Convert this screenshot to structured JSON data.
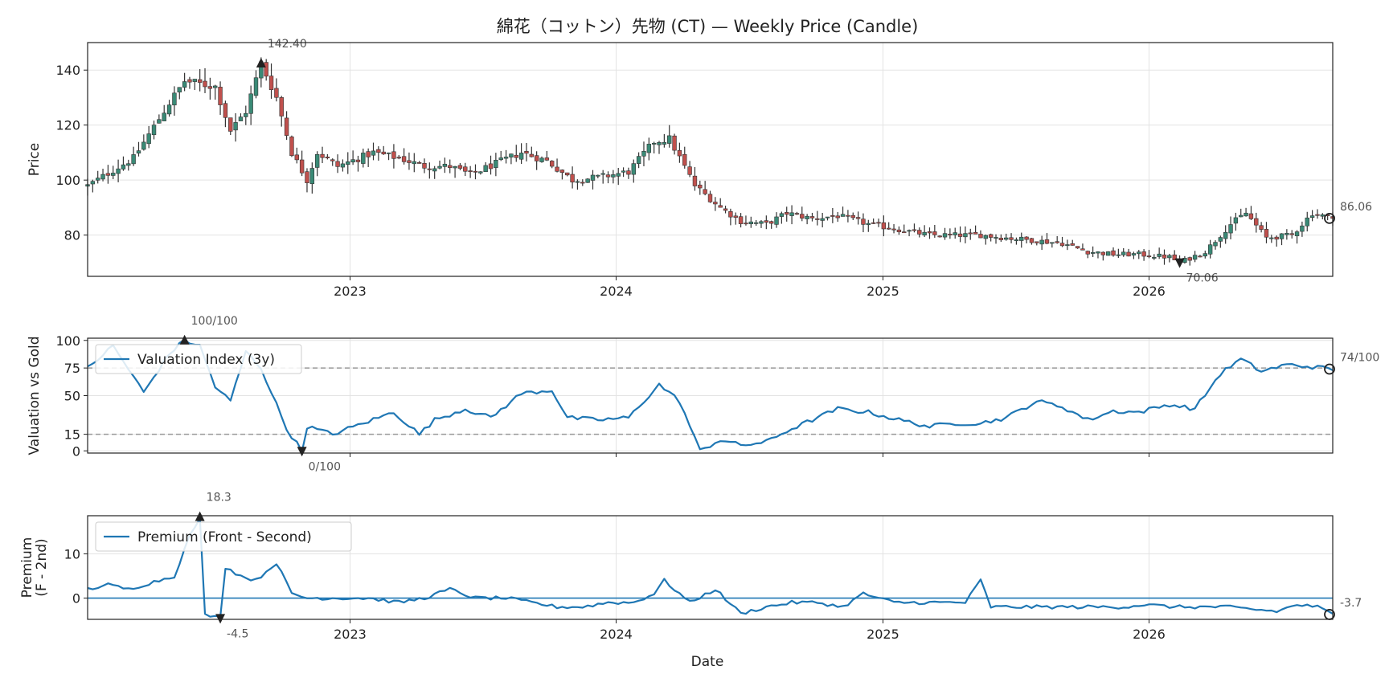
{
  "chart_data": {
    "type": "multi-panel",
    "title": "綿花（コットン）先物 (CT) — Weekly Price (Candle)",
    "x_axis": {
      "label": "Date",
      "tick_labels": [
        "2023",
        "2024",
        "2025",
        "2026"
      ],
      "range": [
        "2022-01-06",
        "2026-09-10"
      ]
    },
    "colors": {
      "up": "#3a8a76",
      "down": "#c0504d",
      "line": "#1f77b4",
      "wick": "#333333",
      "reference": "#999999"
    },
    "panels": [
      {
        "name": "price",
        "type": "candlestick",
        "ylabel": "Price",
        "ylim": [
          65,
          150
        ],
        "yticks": [
          "80",
          "100",
          "120",
          "140"
        ],
        "ytick_values": [
          80,
          100,
          120,
          140
        ],
        "anchors": [
          [
            "2022-01-06",
            98
          ],
          [
            "2022-03-10",
            108
          ],
          [
            "2022-04-28",
            128
          ],
          [
            "2022-05-19",
            136
          ],
          [
            "2022-06-30",
            134
          ],
          [
            "2022-07-21",
            118
          ],
          [
            "2022-08-11",
            125
          ],
          [
            "2022-09-01",
            142.4
          ],
          [
            "2022-09-22",
            130
          ],
          [
            "2022-10-13",
            110
          ],
          [
            "2022-11-03",
            100
          ],
          [
            "2022-11-17",
            110
          ],
          [
            "2022-12-15",
            105
          ],
          [
            "2023-02-02",
            110
          ],
          [
            "2023-03-09",
            108
          ],
          [
            "2023-04-13",
            105
          ],
          [
            "2023-05-18",
            105
          ],
          [
            "2023-06-15",
            102
          ],
          [
            "2023-07-20",
            106
          ],
          [
            "2023-08-24",
            110
          ],
          [
            "2023-09-28",
            107
          ],
          [
            "2023-11-02",
            100
          ],
          [
            "2023-12-07",
            101
          ],
          [
            "2024-01-18",
            103
          ],
          [
            "2024-02-22",
            114
          ],
          [
            "2024-03-14",
            115
          ],
          [
            "2024-04-18",
            98
          ],
          [
            "2024-05-23",
            90
          ],
          [
            "2024-06-20",
            85
          ],
          [
            "2024-07-25",
            84
          ],
          [
            "2024-08-22",
            88
          ],
          [
            "2024-09-26",
            86
          ],
          [
            "2024-10-31",
            87
          ],
          [
            "2024-12-12",
            84
          ],
          [
            "2025-01-23",
            82
          ],
          [
            "2025-03-06",
            80
          ],
          [
            "2025-04-10",
            80
          ],
          [
            "2025-05-15",
            80
          ],
          [
            "2025-06-19",
            79
          ],
          [
            "2025-07-31",
            78
          ],
          [
            "2025-09-04",
            77
          ],
          [
            "2025-10-09",
            74
          ],
          [
            "2025-11-13",
            73
          ],
          [
            "2025-12-18",
            73
          ],
          [
            "2026-01-29",
            72
          ],
          [
            "2026-02-12",
            70.06
          ],
          [
            "2026-03-19",
            74
          ],
          [
            "2026-04-23",
            84
          ],
          [
            "2026-05-14",
            88
          ],
          [
            "2026-06-11",
            79
          ],
          [
            "2026-07-16",
            80
          ],
          [
            "2026-08-13",
            88
          ],
          [
            "2026-09-10",
            86.06
          ]
        ],
        "annotations": [
          {
            "date": "2022-09-01",
            "value": 142.4,
            "label": "142.40",
            "marker": "up-triangle"
          },
          {
            "date": "2026-02-12",
            "value": 70.06,
            "label": "70.06",
            "marker": "down-triangle"
          },
          {
            "date": "2026-09-10",
            "value": 86.06,
            "label": "86.06",
            "marker": "circle"
          }
        ]
      },
      {
        "name": "valuation",
        "type": "line",
        "ylabel": "Valuation vs Gold",
        "ylim": [
          -2,
          102
        ],
        "yticks": [
          "0",
          "15",
          "50",
          "75",
          "100"
        ],
        "ytick_values": [
          0,
          15,
          50,
          75,
          100
        ],
        "reference_lines": [
          75,
          15
        ],
        "legend": "Valuation Index (3y)",
        "legend_location": "upper-left",
        "anchors": [
          [
            "2022-01-06",
            75
          ],
          [
            "2022-02-10",
            95
          ],
          [
            "2022-03-24",
            53
          ],
          [
            "2022-04-28",
            88
          ],
          [
            "2022-05-19",
            100
          ],
          [
            "2022-06-09",
            95
          ],
          [
            "2022-06-30",
            58
          ],
          [
            "2022-07-21",
            45
          ],
          [
            "2022-08-11",
            90
          ],
          [
            "2022-09-01",
            75
          ],
          [
            "2022-10-06",
            20
          ],
          [
            "2022-10-27",
            0
          ],
          [
            "2022-11-03",
            22
          ],
          [
            "2022-12-08",
            15
          ],
          [
            "2023-01-19",
            25
          ],
          [
            "2023-03-02",
            35
          ],
          [
            "2023-04-06",
            15
          ],
          [
            "2023-04-27",
            28
          ],
          [
            "2023-06-08",
            38
          ],
          [
            "2023-07-13",
            30
          ],
          [
            "2023-08-24",
            52
          ],
          [
            "2023-10-05",
            55
          ],
          [
            "2023-10-26",
            30
          ],
          [
            "2023-12-07",
            28
          ],
          [
            "2024-01-18",
            30
          ],
          [
            "2024-02-29",
            60
          ],
          [
            "2024-03-28",
            45
          ],
          [
            "2024-04-25",
            0
          ],
          [
            "2024-05-23",
            10
          ],
          [
            "2024-06-20",
            5
          ],
          [
            "2024-07-25",
            8
          ],
          [
            "2024-08-22",
            18
          ],
          [
            "2024-09-26",
            28
          ],
          [
            "2024-10-31",
            38
          ],
          [
            "2024-12-12",
            35
          ],
          [
            "2025-01-23",
            28
          ],
          [
            "2025-03-06",
            22
          ],
          [
            "2025-04-10",
            25
          ],
          [
            "2025-05-15",
            25
          ],
          [
            "2025-06-19",
            30
          ],
          [
            "2025-07-31",
            45
          ],
          [
            "2025-09-04",
            40
          ],
          [
            "2025-10-09",
            28
          ],
          [
            "2025-11-13",
            36
          ],
          [
            "2025-12-18",
            35
          ],
          [
            "2026-01-29",
            42
          ],
          [
            "2026-03-05",
            38
          ],
          [
            "2026-04-09",
            70
          ],
          [
            "2026-05-07",
            83
          ],
          [
            "2026-06-04",
            72
          ],
          [
            "2026-07-09",
            78
          ],
          [
            "2026-08-13",
            76
          ],
          [
            "2026-09-10",
            74
          ]
        ],
        "annotations": [
          {
            "date": "2022-05-19",
            "value": 100,
            "label": "100/100",
            "marker": "up-triangle"
          },
          {
            "date": "2022-10-27",
            "value": 0,
            "label": "0/100",
            "marker": "down-triangle"
          },
          {
            "date": "2026-09-10",
            "value": 74,
            "label": "74/100",
            "marker": "circle"
          }
        ]
      },
      {
        "name": "premium",
        "type": "line",
        "ylabel": "Premium\n(F - 2nd)",
        "ylim": [
          -4.8,
          18.6
        ],
        "yticks": [
          "0",
          "10"
        ],
        "ytick_values": [
          0,
          10
        ],
        "reference_lines": [
          0
        ],
        "legend": "Premium (Front - Second)",
        "legend_location": "upper-left",
        "anchors": [
          [
            "2022-01-06",
            2
          ],
          [
            "2022-02-03",
            3
          ],
          [
            "2022-03-03",
            2
          ],
          [
            "2022-04-14",
            4
          ],
          [
            "2022-05-05",
            5
          ],
          [
            "2022-05-26",
            14
          ],
          [
            "2022-06-09",
            18.3
          ],
          [
            "2022-06-16",
            -3.8
          ],
          [
            "2022-07-07",
            -4.5
          ],
          [
            "2022-07-14",
            7
          ],
          [
            "2022-08-04",
            5
          ],
          [
            "2022-08-25",
            4
          ],
          [
            "2022-09-22",
            8
          ],
          [
            "2022-10-13",
            1
          ],
          [
            "2022-11-03",
            0
          ],
          [
            "2022-12-08",
            0
          ],
          [
            "2023-01-26",
            0
          ],
          [
            "2023-03-09",
            -1
          ],
          [
            "2023-04-13",
            0
          ],
          [
            "2023-05-18",
            2
          ],
          [
            "2023-06-22",
            0
          ],
          [
            "2023-08-03",
            0
          ],
          [
            "2023-09-07",
            -1
          ],
          [
            "2023-10-12",
            -2
          ],
          [
            "2023-11-16",
            -2
          ],
          [
            "2023-12-21",
            -1
          ],
          [
            "2024-01-25",
            -1
          ],
          [
            "2024-02-22",
            1
          ],
          [
            "2024-03-07",
            4
          ],
          [
            "2024-04-11",
            -1
          ],
          [
            "2024-05-16",
            2
          ],
          [
            "2024-06-20",
            -3.5
          ],
          [
            "2024-07-25",
            -2
          ],
          [
            "2024-08-29",
            -1
          ],
          [
            "2024-10-03",
            -1
          ],
          [
            "2024-11-07",
            -2
          ],
          [
            "2024-12-05",
            1
          ],
          [
            "2025-01-16",
            -1
          ],
          [
            "2025-02-20",
            -1
          ],
          [
            "2025-03-27",
            -1
          ],
          [
            "2025-04-24",
            -1
          ],
          [
            "2025-05-15",
            4
          ],
          [
            "2025-05-29",
            -2
          ],
          [
            "2025-07-03",
            -2
          ],
          [
            "2025-08-07",
            -2
          ],
          [
            "2025-09-18",
            -2
          ],
          [
            "2025-10-23",
            -2
          ],
          [
            "2025-11-27",
            -2
          ],
          [
            "2025-12-25",
            -1.5
          ],
          [
            "2026-02-05",
            -2
          ],
          [
            "2026-03-12",
            -2
          ],
          [
            "2026-04-16",
            -2
          ],
          [
            "2026-05-21",
            -2.5
          ],
          [
            "2026-06-25",
            -3
          ],
          [
            "2026-07-23",
            -1.5
          ],
          [
            "2026-08-20",
            -2
          ],
          [
            "2026-09-10",
            -3.7
          ]
        ],
        "annotations": [
          {
            "date": "2022-06-09",
            "value": 18.3,
            "label": "18.3",
            "marker": "up-triangle"
          },
          {
            "date": "2022-07-07",
            "value": -4.5,
            "label": "-4.5",
            "marker": "down-triangle"
          },
          {
            "date": "2026-09-10",
            "value": -3.7,
            "label": "-3.7",
            "marker": "circle"
          }
        ]
      }
    ]
  }
}
